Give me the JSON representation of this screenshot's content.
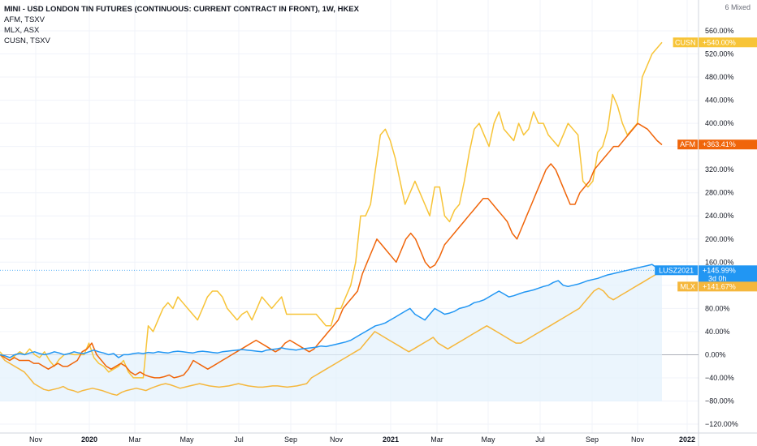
{
  "legend": {
    "main": "MINI - USD LONDON TIN FUTURES (CONTINUOUS: CURRENT CONTRACT IN FRONT), 1W, HKEX",
    "lines": [
      "AFM, TSXV",
      "MLX, ASX",
      "CUSN, TSXV"
    ]
  },
  "scale_mode": "6 Mixed",
  "colors": {
    "lusz": "#2196f3",
    "afm": "#f0650a",
    "mlx": "#f5b73c",
    "cusn": "#f7c438",
    "area": "#e3f1fc"
  },
  "tags": {
    "cusn": {
      "label": "CUSN",
      "value": "+540.00%"
    },
    "afm": {
      "label": "AFM",
      "value": "+363.41%"
    },
    "lusz": {
      "label": "LUSZ2021",
      "value": "+145.99%",
      "sub": "3d 0h"
    },
    "mlx": {
      "label": "MLX",
      "value": "+141.67%"
    }
  },
  "chart_data": {
    "type": "line",
    "x_labels": [
      "Nov",
      "2020",
      "Mar",
      "May",
      "Jul",
      "Sep",
      "Nov",
      "2021",
      "Mar",
      "May",
      "Jul",
      "Sep",
      "Nov",
      "2022"
    ],
    "bold_x_labels": [
      "2020",
      "2021",
      "2022"
    ],
    "y_ticks": [
      560,
      520,
      480,
      440,
      400,
      360,
      320,
      280,
      240,
      200,
      160,
      120,
      80,
      40,
      0,
      -40,
      -80,
      -120
    ],
    "ylim": [
      -120,
      570
    ],
    "y_unit": "%",
    "grid": true,
    "series": [
      {
        "name": "CUSN",
        "key": "cusn",
        "values": [
          5,
          -5,
          -10,
          -2,
          5,
          0,
          10,
          0,
          -5,
          5,
          -10,
          -20,
          -8,
          0,
          2,
          0,
          0,
          0,
          20,
          -5,
          -15,
          -20,
          -30,
          -25,
          -20,
          -10,
          -30,
          -40,
          -40,
          -40,
          50,
          40,
          60,
          80,
          90,
          80,
          100,
          90,
          80,
          70,
          60,
          80,
          100,
          110,
          110,
          100,
          80,
          70,
          60,
          70,
          75,
          60,
          80,
          100,
          90,
          80,
          90,
          100,
          70,
          70,
          70,
          70,
          70,
          70,
          70,
          60,
          50,
          50,
          80,
          80,
          100,
          120,
          160,
          240,
          240,
          260,
          320,
          380,
          390,
          370,
          340,
          300,
          260,
          280,
          300,
          280,
          260,
          240,
          290,
          290,
          240,
          230,
          250,
          260,
          300,
          350,
          390,
          400,
          380,
          360,
          400,
          420,
          390,
          380,
          370,
          400,
          380,
          390,
          420,
          400,
          400,
          380,
          370,
          360,
          380,
          400,
          390,
          380,
          300,
          290,
          300,
          350,
          360,
          390,
          450,
          430,
          400,
          380,
          390,
          400,
          480,
          500,
          520,
          530,
          540
        ],
        "print_name": true
      },
      {
        "name": "AFM",
        "key": "afm",
        "values": [
          0,
          -5,
          -10,
          -5,
          -10,
          -10,
          -10,
          -15,
          -15,
          -20,
          -25,
          -20,
          -15,
          -20,
          -20,
          -15,
          -10,
          5,
          10,
          20,
          0,
          -10,
          -20,
          -25,
          -20,
          -15,
          -20,
          -30,
          -35,
          -30,
          -35,
          -38,
          -40,
          -40,
          -38,
          -35,
          -40,
          -38,
          -35,
          -25,
          -10,
          -15,
          -20,
          -25,
          -20,
          -15,
          -10,
          -5,
          0,
          5,
          10,
          15,
          20,
          25,
          20,
          15,
          10,
          5,
          10,
          20,
          25,
          20,
          15,
          10,
          5,
          10,
          20,
          30,
          40,
          50,
          60,
          80,
          90,
          100,
          110,
          140,
          160,
          180,
          200,
          190,
          180,
          170,
          160,
          180,
          200,
          210,
          200,
          180,
          160,
          150,
          155,
          170,
          190,
          200,
          210,
          220,
          230,
          240,
          250,
          260,
          270,
          270,
          260,
          250,
          240,
          230,
          210,
          200,
          220,
          240,
          260,
          280,
          300,
          320,
          330,
          320,
          300,
          280,
          260,
          260,
          280,
          290,
          300,
          320,
          330,
          340,
          350,
          360,
          360,
          370,
          380,
          390,
          400,
          395,
          390,
          380,
          370,
          363
        ],
        "print_name": true
      },
      {
        "name": "LUSZ2021",
        "key": "lusz",
        "values": [
          0,
          -2,
          -5,
          0,
          2,
          0,
          3,
          5,
          2,
          0,
          2,
          5,
          3,
          0,
          2,
          5,
          3,
          2,
          5,
          8,
          5,
          3,
          0,
          2,
          -5,
          0,
          0,
          2,
          3,
          2,
          4,
          3,
          5,
          4,
          3,
          5,
          6,
          5,
          4,
          3,
          5,
          6,
          5,
          4,
          3,
          5,
          6,
          7,
          8,
          9,
          8,
          7,
          6,
          5,
          8,
          9,
          10,
          12,
          10,
          9,
          8,
          10,
          11,
          12,
          13,
          15,
          14,
          16,
          18,
          20,
          22,
          25,
          30,
          35,
          40,
          45,
          50,
          52,
          55,
          60,
          65,
          70,
          75,
          80,
          70,
          65,
          60,
          70,
          80,
          75,
          70,
          72,
          75,
          80,
          82,
          85,
          90,
          92,
          95,
          100,
          105,
          110,
          105,
          100,
          102,
          105,
          108,
          110,
          112,
          115,
          118,
          120,
          125,
          128,
          120,
          118,
          120,
          122,
          125,
          128,
          130,
          132,
          135,
          138,
          140,
          142,
          144,
          146,
          148,
          150,
          152,
          154,
          156,
          150,
          146
        ],
        "print_name": true
      },
      {
        "name": "MLX",
        "key": "mlx",
        "values": [
          0,
          -10,
          -15,
          -20,
          -25,
          -30,
          -40,
          -50,
          -55,
          -60,
          -62,
          -60,
          -58,
          -55,
          -60,
          -62,
          -65,
          -62,
          -60,
          -58,
          -60,
          -62,
          -65,
          -68,
          -70,
          -65,
          -62,
          -60,
          -58,
          -60,
          -62,
          -58,
          -55,
          -52,
          -50,
          -52,
          -55,
          -58,
          -56,
          -54,
          -52,
          -50,
          -52,
          -54,
          -55,
          -56,
          -55,
          -54,
          -52,
          -50,
          -52,
          -54,
          -55,
          -56,
          -56,
          -55,
          -54,
          -54,
          -55,
          -56,
          -55,
          -54,
          -52,
          -50,
          -40,
          -35,
          -30,
          -25,
          -20,
          -15,
          -10,
          -5,
          0,
          5,
          10,
          20,
          30,
          40,
          35,
          30,
          25,
          20,
          15,
          10,
          5,
          10,
          15,
          20,
          25,
          30,
          20,
          15,
          10,
          15,
          20,
          25,
          30,
          35,
          40,
          45,
          50,
          45,
          40,
          35,
          30,
          25,
          20,
          20,
          25,
          30,
          35,
          40,
          45,
          50,
          55,
          60,
          65,
          70,
          75,
          80,
          90,
          100,
          110,
          115,
          110,
          100,
          95,
          100,
          105,
          110,
          115,
          120,
          125,
          130,
          135,
          140,
          141.67
        ],
        "print_name": true
      }
    ]
  }
}
